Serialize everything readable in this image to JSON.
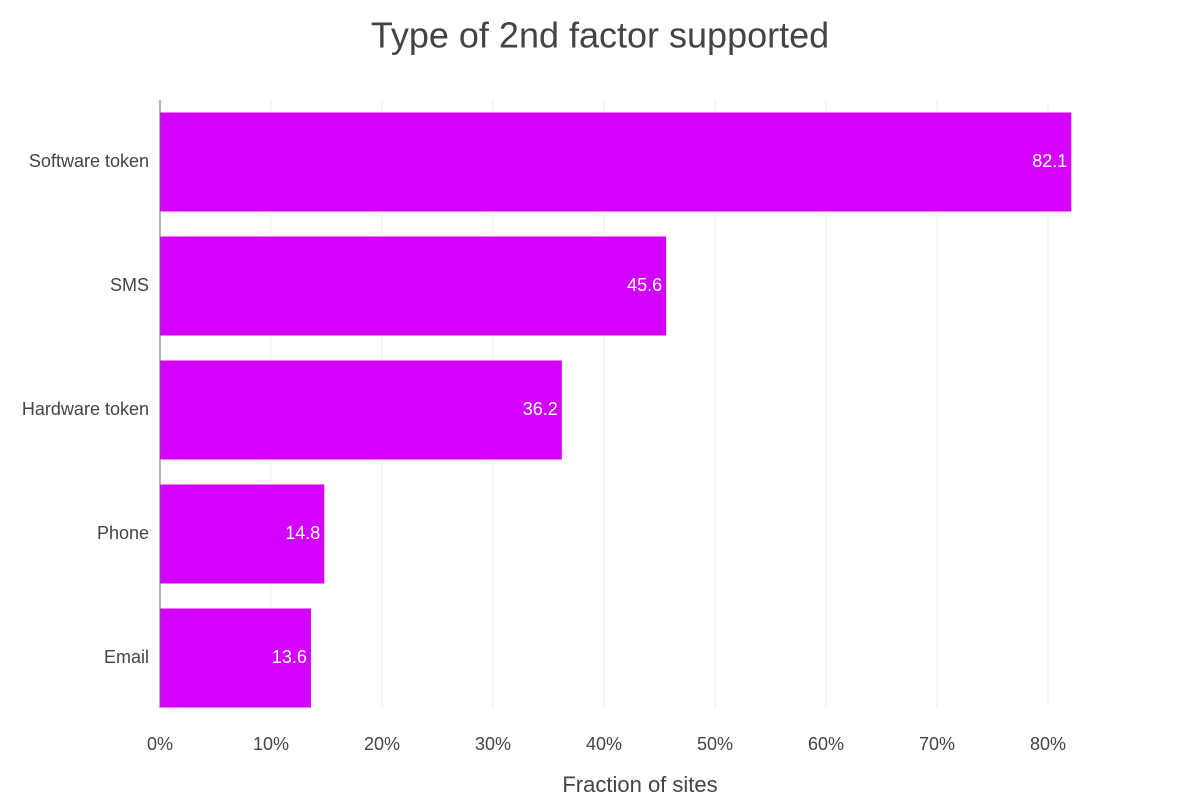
{
  "chart_data": {
    "type": "hbar",
    "title": "Type of 2nd factor supported",
    "categories": [
      "Software token",
      "SMS",
      "Hardware token",
      "Phone",
      "Email"
    ],
    "values": [
      82.1,
      45.6,
      36.2,
      14.8,
      13.6
    ],
    "color": "#d400ff",
    "x_label": "Fraction of sites",
    "xlim": [
      0,
      85
    ],
    "xticks": [
      {
        "value": 0,
        "label": "0%"
      },
      {
        "value": 10,
        "label": "10%"
      },
      {
        "value": 20,
        "label": "20%"
      },
      {
        "value": 30,
        "label": "30%"
      },
      {
        "value": 40,
        "label": "40%"
      },
      {
        "value": 50,
        "label": "50%"
      },
      {
        "value": 60,
        "label": "60%"
      },
      {
        "value": 70,
        "label": "70%"
      },
      {
        "value": 80,
        "label": "80%"
      }
    ],
    "grid": true
  }
}
